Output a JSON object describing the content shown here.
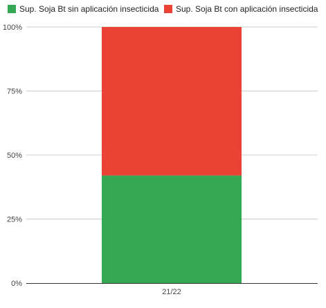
{
  "chart_data": {
    "type": "bar",
    "stacked": true,
    "normalized": true,
    "categories": [
      "21/22"
    ],
    "series": [
      {
        "name": "Sup. Soja Bt sin aplicación insecticida",
        "values": [
          42
        ],
        "color": "#34a853"
      },
      {
        "name": "Sup. Soja Bt con aplicación insecticida",
        "values": [
          58
        ],
        "color": "#ea4335"
      }
    ],
    "y_ticks": [
      "0%",
      "25%",
      "50%",
      "75%",
      "100%"
    ],
    "ylim": [
      0,
      100
    ],
    "grid": true,
    "legend_position": "top-left",
    "title": "",
    "xlabel": "",
    "ylabel": ""
  }
}
